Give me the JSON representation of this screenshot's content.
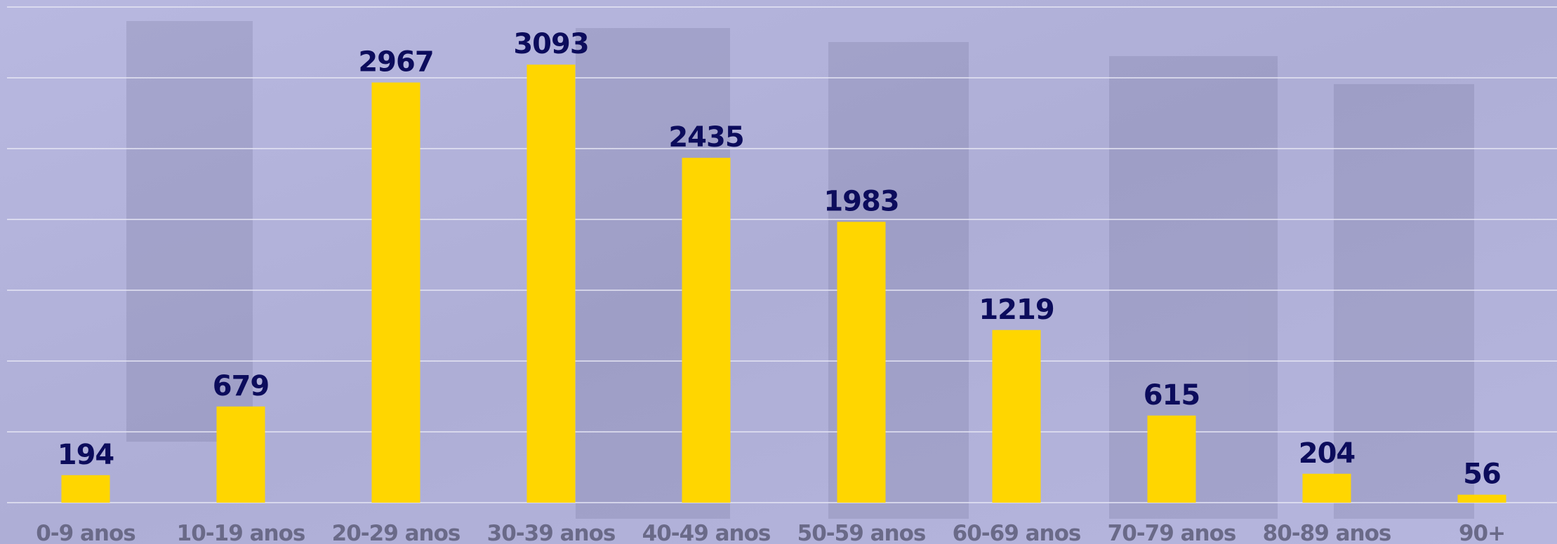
{
  "chart_data": {
    "type": "bar",
    "categories": [
      "0-9 anos",
      "10-19 anos",
      "20-29 anos",
      "30-39 anos",
      "40-49 anos",
      "50-59 anos",
      "60-69 anos",
      "70-79 anos",
      "80-89 anos",
      "90+"
    ],
    "values": [
      194,
      679,
      2967,
      3093,
      2435,
      1983,
      1219,
      615,
      204,
      56
    ],
    "color": "#ffd600",
    "ylim": [
      0,
      3500
    ],
    "yticks": [
      0,
      500,
      1000,
      1500,
      2000,
      2500,
      3000,
      3500
    ],
    "grid": true
  }
}
